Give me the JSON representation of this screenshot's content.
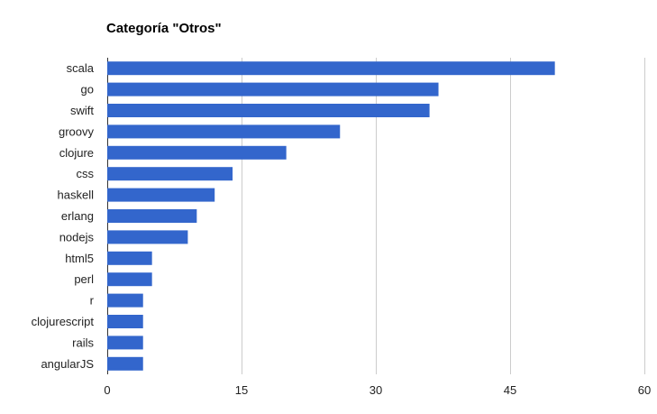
{
  "colors": {
    "bar": "#3366cc",
    "gridline": "#cccccc",
    "baseline": "#333333",
    "text": "#222222",
    "background": "#ffffff"
  },
  "chart_data": {
    "type": "bar",
    "orientation": "horizontal",
    "title": "Categoría \"Otros\"",
    "xlabel": "",
    "ylabel": "",
    "categories": [
      "scala",
      "go",
      "swift",
      "groovy",
      "clojure",
      "css",
      "haskell",
      "erlang",
      "nodejs",
      "html5",
      "perl",
      "r",
      "clojurescript",
      "rails",
      "angularJS"
    ],
    "values": [
      50,
      37,
      36,
      26,
      20,
      14,
      12,
      10,
      9,
      5,
      5,
      4,
      4,
      4,
      4
    ],
    "xlim": [
      0,
      60
    ],
    "xticks": [
      "0",
      "15",
      "30",
      "45",
      "60"
    ],
    "xtick_values": [
      0,
      15,
      30,
      45,
      60
    ],
    "grid": true,
    "legend": "none"
  }
}
